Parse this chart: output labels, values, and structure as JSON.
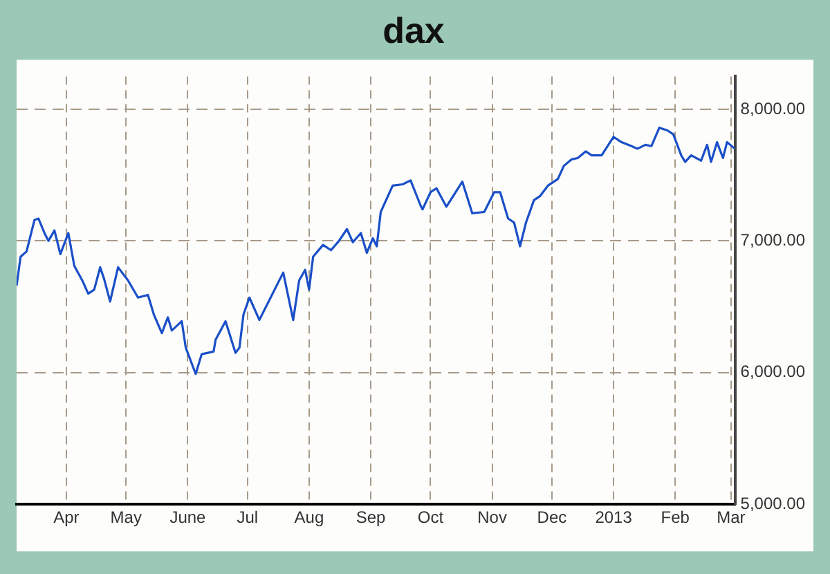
{
  "chart_data": {
    "type": "line",
    "title": "dax",
    "x": [
      "2012-03-07",
      "2012-03-09",
      "2012-03-12",
      "2012-03-16",
      "2012-03-18",
      "2012-03-21",
      "2012-03-23",
      "2012-03-26",
      "2012-03-29",
      "2012-04-02",
      "2012-04-05",
      "2012-04-09",
      "2012-04-12",
      "2012-04-15",
      "2012-04-18",
      "2012-04-20",
      "2012-04-23",
      "2012-04-27",
      "2012-05-02",
      "2012-05-07",
      "2012-05-12",
      "2012-05-15",
      "2012-05-19",
      "2012-05-22",
      "2012-05-24",
      "2012-05-29",
      "2012-05-31",
      "2012-06-05",
      "2012-06-08",
      "2012-06-14",
      "2012-06-15",
      "2012-06-20",
      "2012-06-25",
      "2012-06-27",
      "2012-06-29",
      "2012-07-02",
      "2012-07-07",
      "2012-07-12",
      "2012-07-19",
      "2012-07-24",
      "2012-07-27",
      "2012-07-30",
      "2012-08-01",
      "2012-08-03",
      "2012-08-08",
      "2012-08-12",
      "2012-08-16",
      "2012-08-20",
      "2012-08-23",
      "2012-08-27",
      "2012-08-30",
      "2012-09-02",
      "2012-09-04",
      "2012-09-06",
      "2012-09-12",
      "2012-09-17",
      "2012-09-21",
      "2012-09-26",
      "2012-09-27",
      "2012-10-01",
      "2012-10-04",
      "2012-10-09",
      "2012-10-17",
      "2012-10-22",
      "2012-10-28",
      "2012-11-02",
      "2012-11-05",
      "2012-11-09",
      "2012-11-12",
      "2012-11-15",
      "2012-11-18",
      "2012-11-22",
      "2012-11-25",
      "2012-11-29",
      "2012-12-04",
      "2012-12-07",
      "2012-12-11",
      "2012-12-14",
      "2012-12-18",
      "2012-12-21",
      "2012-12-26",
      "2013-01-01",
      "2013-01-05",
      "2013-01-10",
      "2013-01-13",
      "2013-01-17",
      "2013-01-20",
      "2013-01-24",
      "2013-01-28",
      "2013-01-31",
      "2013-02-04",
      "2013-02-06",
      "2013-02-09",
      "2013-02-14",
      "2013-02-17",
      "2013-02-19",
      "2013-02-22",
      "2013-02-25",
      "2013-02-27",
      "2013-03-03"
    ],
    "series": [
      {
        "color": "#1a4fc8",
        "values": [
          6660,
          6880,
          6920,
          7160,
          7170,
          7060,
          7000,
          7080,
          6900,
          7060,
          6810,
          6700,
          6600,
          6630,
          6800,
          6710,
          6540,
          6800,
          6700,
          6570,
          6590,
          6440,
          6300,
          6420,
          6320,
          6390,
          6190,
          5990,
          6140,
          6160,
          6250,
          6390,
          6150,
          6190,
          6440,
          6570,
          6400,
          6550,
          6760,
          6400,
          6700,
          6780,
          6630,
          6880,
          6970,
          6930,
          7000,
          7090,
          6990,
          7060,
          6910,
          7020,
          6960,
          7220,
          7420,
          7430,
          7460,
          7270,
          7240,
          7370,
          7400,
          7260,
          7450,
          7210,
          7220,
          7370,
          7370,
          7170,
          7140,
          6960,
          7140,
          7310,
          7340,
          7420,
          7470,
          7570,
          7620,
          7630,
          7680,
          7650,
          7650,
          7790,
          7750,
          7720,
          7700,
          7730,
          7720,
          7860,
          7840,
          7810,
          7650,
          7600,
          7650,
          7610,
          7730,
          7600,
          7750,
          7630,
          7750,
          7700
        ]
      }
    ],
    "xlim": [
      "2012-03-07",
      "2013-03-03"
    ],
    "xticks": [
      {
        "value": "2012-04-01",
        "label": "Apr"
      },
      {
        "value": "2012-05-01",
        "label": "May"
      },
      {
        "value": "2012-06-01",
        "label": "June"
      },
      {
        "value": "2012-07-01",
        "label": "Jul"
      },
      {
        "value": "2012-08-01",
        "label": "Aug"
      },
      {
        "value": "2012-09-01",
        "label": "Sep"
      },
      {
        "value": "2012-10-01",
        "label": "Oct"
      },
      {
        "value": "2012-11-01",
        "label": "Nov"
      },
      {
        "value": "2012-12-01",
        "label": "Dec"
      },
      {
        "value": "2013-01-01",
        "label": "2013"
      },
      {
        "value": "2013-02-01",
        "label": "Feb"
      },
      {
        "value": "2013-03-01",
        "label": "Mar"
      }
    ],
    "ylim": [
      5000,
      8250
    ],
    "yticks": [
      {
        "value": 5000,
        "label": "5,000.00"
      },
      {
        "value": 6000,
        "label": "6,000.00"
      },
      {
        "value": 7000,
        "label": "7,000.00"
      },
      {
        "value": 8000,
        "label": "8,000.00"
      }
    ],
    "grid": true,
    "legend": false,
    "marker": "none",
    "line_style": "solid"
  }
}
